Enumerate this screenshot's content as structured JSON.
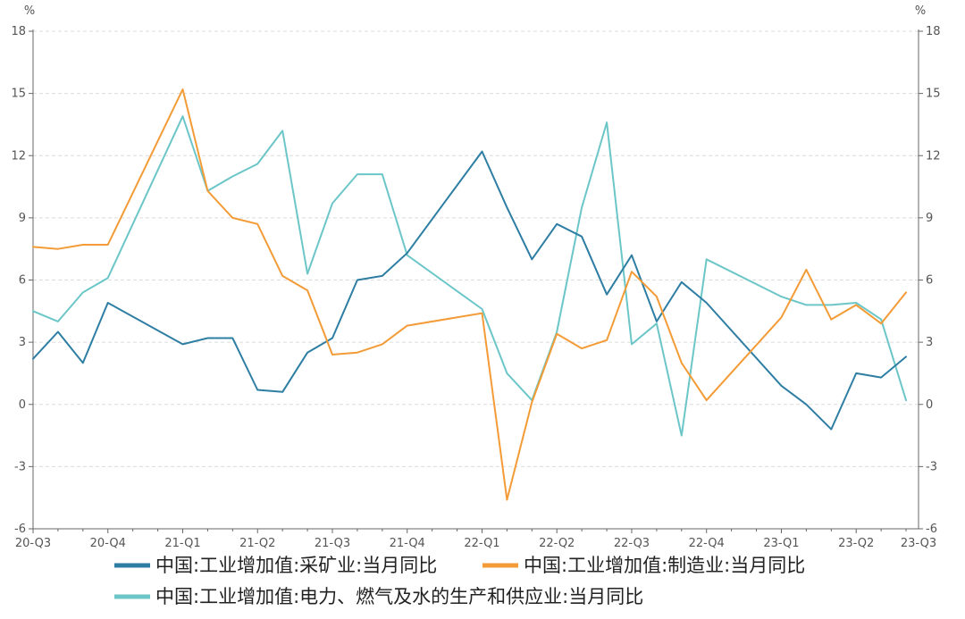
{
  "chart_data": {
    "type": "line",
    "title": "",
    "xlabel": "",
    "ylabel": "",
    "y_unit_left": "%",
    "y_unit_right": "%",
    "ylim": [
      -6,
      18
    ],
    "yticks": [
      -6,
      -3,
      0,
      3,
      6,
      9,
      12,
      15,
      18
    ],
    "grid": "horizontal dashed",
    "legend_position": "bottom",
    "x_tick_labels": [
      "20-Q3",
      "20-Q4",
      "21-Q1",
      "21-Q2",
      "21-Q3",
      "21-Q4",
      "22-Q1",
      "22-Q2",
      "22-Q3",
      "22-Q4",
      "23-Q1",
      "23-Q2",
      "23-Q3"
    ],
    "x_tick_positions": [
      0,
      3,
      6,
      9,
      12,
      15,
      18,
      21,
      24,
      27,
      30,
      33,
      35.5
    ],
    "x": [
      0,
      1,
      2,
      3,
      6,
      7,
      8,
      9,
      10,
      11,
      12,
      13,
      14,
      15,
      18,
      19,
      20,
      21,
      22,
      23,
      24,
      25,
      26,
      27,
      30,
      31,
      32,
      33,
      34,
      35
    ],
    "series": [
      {
        "name": "中国:工业增加值:采矿业:当月同比",
        "color": "#2e7ea3",
        "values": [
          2.2,
          3.5,
          2.0,
          4.9,
          2.9,
          3.2,
          3.2,
          0.7,
          0.6,
          2.5,
          3.2,
          6.0,
          6.2,
          7.3,
          12.2,
          9.5,
          7.0,
          8.7,
          8.1,
          5.3,
          7.2,
          4.0,
          5.9,
          4.9,
          0.9,
          0.0,
          -1.2,
          1.5,
          1.3,
          2.3
        ]
      },
      {
        "name": "中国:工业增加值:制造业:当月同比",
        "color": "#f39b36",
        "values": [
          7.6,
          7.5,
          7.7,
          7.7,
          15.2,
          10.3,
          9.0,
          8.7,
          6.2,
          5.5,
          2.4,
          2.5,
          2.9,
          3.8,
          4.4,
          -4.6,
          0.1,
          3.4,
          2.7,
          3.1,
          6.4,
          5.2,
          2.0,
          0.2,
          4.2,
          6.5,
          4.1,
          4.8,
          3.9,
          5.4
        ]
      },
      {
        "name": "中国:工业增加值:电力、燃气及水的生产和供应业:当月同比",
        "color": "#6cc6c8",
        "values": [
          4.5,
          4.0,
          5.4,
          6.1,
          13.9,
          10.3,
          11.0,
          11.6,
          13.2,
          6.3,
          9.7,
          11.1,
          11.1,
          7.2,
          4.6,
          1.5,
          0.2,
          3.5,
          9.5,
          13.6,
          2.9,
          3.9,
          -1.5,
          7.0,
          5.2,
          4.8,
          4.8,
          4.9,
          4.1,
          0.2
        ]
      }
    ]
  }
}
